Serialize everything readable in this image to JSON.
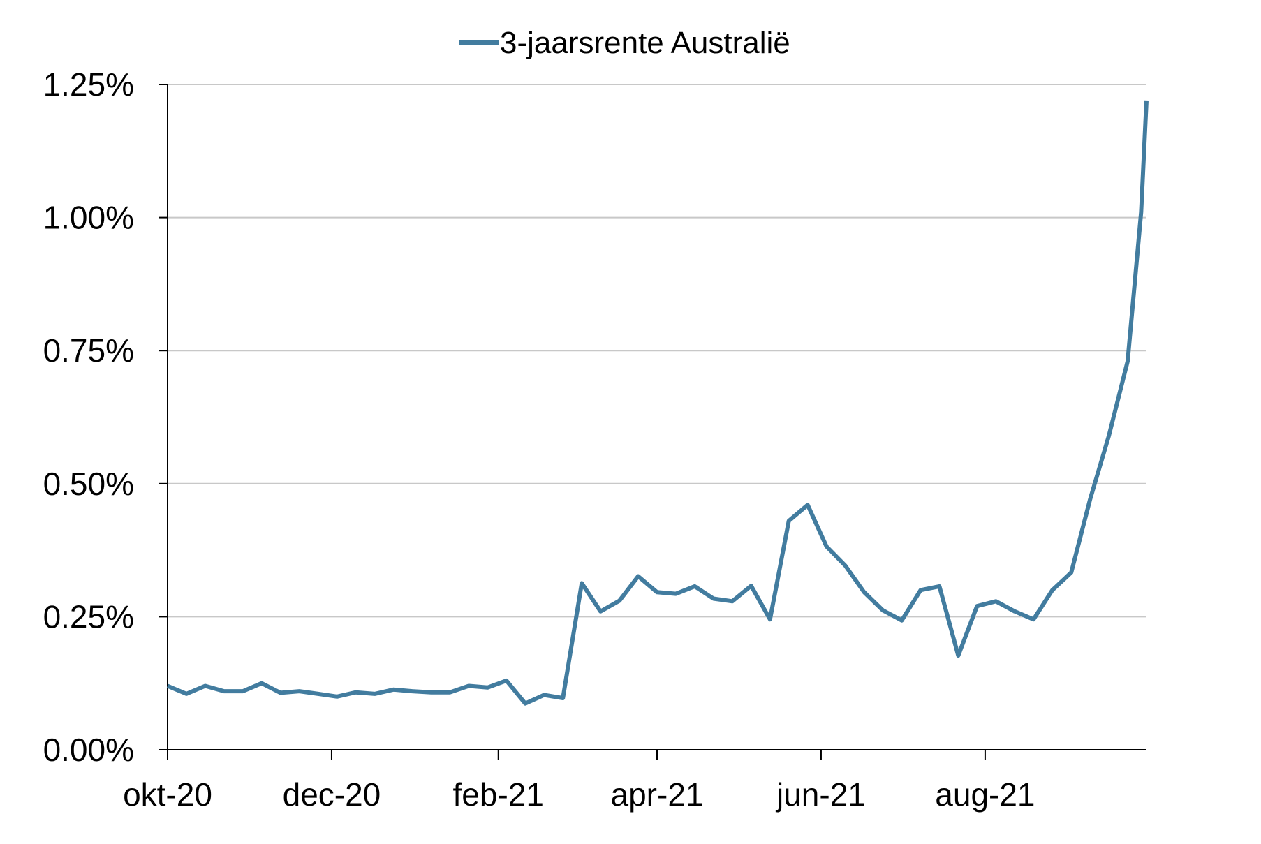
{
  "chart_data": {
    "type": "line",
    "title": "",
    "xlabel": "",
    "ylabel": "",
    "legend": {
      "position": "top-center"
    },
    "grid": {
      "horizontal": true,
      "vertical": false
    },
    "colors": {
      "series": "#427c9f",
      "grid": "#c8c8c8",
      "axis": "#000000"
    },
    "x_tick_labels": [
      "okt-20",
      "dec-20",
      "feb-21",
      "apr-21",
      "jun-21",
      "aug-21"
    ],
    "y_tick_labels": [
      "0.00%",
      "0.25%",
      "0.50%",
      "0.75%",
      "1.00%",
      "1.25%"
    ],
    "y_ticks": [
      0,
      0.25,
      0.5,
      0.75,
      1.0,
      1.25
    ],
    "ylim": [
      0,
      1.25
    ],
    "x_range": [
      "2020-10-01",
      "2021-09-30"
    ],
    "series": [
      {
        "name": "3-jaarsrente Australië",
        "x": [
          "2020-10-01",
          "2020-10-08",
          "2020-10-15",
          "2020-10-22",
          "2020-10-29",
          "2020-11-05",
          "2020-11-12",
          "2020-11-19",
          "2020-11-26",
          "2020-12-03",
          "2020-12-10",
          "2020-12-17",
          "2020-12-24",
          "2020-12-31",
          "2021-01-07",
          "2021-01-14",
          "2021-01-21",
          "2021-01-28",
          "2021-02-04",
          "2021-02-11",
          "2021-02-18",
          "2021-02-25",
          "2021-03-04",
          "2021-03-11",
          "2021-03-18",
          "2021-03-25",
          "2021-04-01",
          "2021-04-08",
          "2021-04-15",
          "2021-04-22",
          "2021-04-29",
          "2021-05-06",
          "2021-05-13",
          "2021-05-20",
          "2021-05-27",
          "2021-06-03",
          "2021-06-10",
          "2021-06-17",
          "2021-06-24",
          "2021-07-01",
          "2021-07-08",
          "2021-07-15",
          "2021-07-22",
          "2021-07-29",
          "2021-08-05",
          "2021-08-12",
          "2021-08-19",
          "2021-08-26",
          "2021-09-02",
          "2021-09-09",
          "2021-09-16",
          "2021-09-23",
          "2021-09-28",
          "2021-09-30"
        ],
        "values": [
          0.12,
          0.105,
          0.12,
          0.11,
          0.11,
          0.125,
          0.107,
          0.11,
          0.105,
          0.1,
          0.108,
          0.105,
          0.113,
          0.11,
          0.108,
          0.108,
          0.12,
          0.117,
          0.13,
          0.087,
          0.103,
          0.097,
          0.313,
          0.26,
          0.28,
          0.326,
          0.296,
          0.293,
          0.307,
          0.284,
          0.279,
          0.308,
          0.245,
          0.43,
          0.46,
          0.382,
          0.346,
          0.296,
          0.262,
          0.243,
          0.3,
          0.307,
          0.177,
          0.27,
          0.279,
          0.26,
          0.245,
          0.3,
          0.333,
          0.47,
          0.59,
          0.73,
          1.01,
          1.22
        ]
      }
    ]
  }
}
